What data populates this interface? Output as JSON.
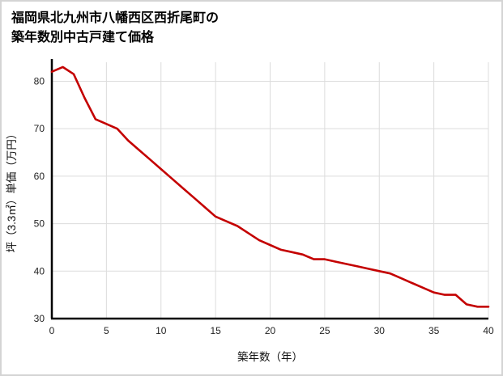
{
  "page": {
    "title_line1": "福岡県北九州市八幡西区西折尾町の",
    "title_line2": "築年数別中古戸建て価格"
  },
  "chart_data": {
    "type": "line",
    "x": [
      0,
      1,
      2,
      3,
      4,
      5,
      6,
      7,
      8,
      9,
      10,
      11,
      12,
      13,
      14,
      15,
      16,
      17,
      18,
      19,
      20,
      21,
      22,
      23,
      24,
      25,
      26,
      27,
      28,
      29,
      30,
      31,
      32,
      33,
      34,
      35,
      36,
      37,
      38,
      39,
      40
    ],
    "y": [
      82,
      83,
      81.5,
      76.5,
      72,
      71,
      70,
      67.5,
      65.5,
      63.5,
      61.5,
      59.5,
      57.5,
      55.5,
      53.5,
      51.5,
      50.5,
      49.5,
      48,
      46.5,
      45.5,
      44.5,
      44,
      43.5,
      42.5,
      42.5,
      42,
      41.5,
      41,
      40.5,
      40,
      39.5,
      38.5,
      37.5,
      36.5,
      35.5,
      35,
      35,
      33,
      32.5,
      32.5
    ],
    "title": "福岡県北九州市八幡西区西折尾町の築年数別中古戸建て価格",
    "xlabel": "築年数（年）",
    "ylabel": "坪（3.3㎡）単価（万円）",
    "xlim": [
      0,
      40
    ],
    "ylim": [
      30,
      84
    ],
    "xticks": [
      0,
      5,
      10,
      15,
      20,
      25,
      30,
      35,
      40
    ],
    "yticks": [
      30,
      40,
      50,
      60,
      70,
      80
    ],
    "line_color": "#c40000",
    "grid_color": "#dcdcdc",
    "axis_color": "#000000",
    "grid": "on",
    "legend": "none"
  }
}
